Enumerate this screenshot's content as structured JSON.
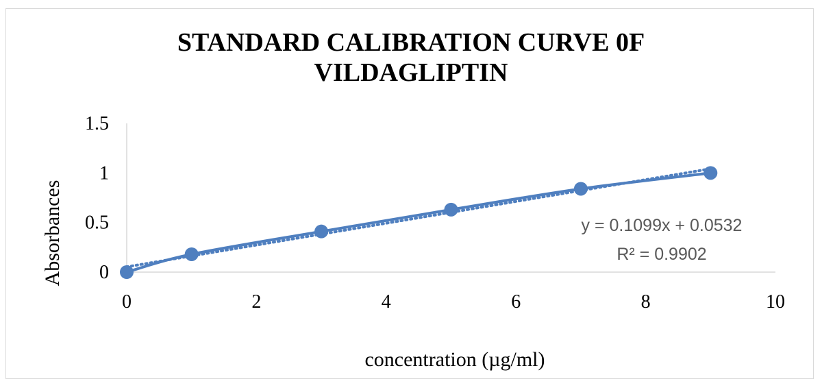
{
  "chart_data": {
    "type": "scatter",
    "title_lines": [
      "STANDARD CALIBRATION CURVE 0F",
      "VILDAGLIPTIN"
    ],
    "xlabel": "concentration (µg/ml)",
    "ylabel": "Absorbances",
    "xlim": [
      0,
      10
    ],
    "ylim": [
      0,
      1.5
    ],
    "x_ticks": [
      "0",
      "2",
      "4",
      "6",
      "8",
      "10"
    ],
    "y_ticks": [
      "0",
      "0.5",
      "1",
      "1.5"
    ],
    "grid": false,
    "legend": "none",
    "series": [
      {
        "x": [
          0,
          1,
          3,
          5,
          7,
          9
        ],
        "y": [
          0.0,
          0.18,
          0.41,
          0.63,
          0.84,
          1.0
        ],
        "color": "#4f7fbf",
        "style": "smooth line with markers"
      }
    ],
    "trendline": {
      "type": "linear",
      "slope": 0.1099,
      "intercept": 0.0532,
      "style": "dotted",
      "color": "#4f7fbf"
    },
    "annotations": [
      "y = 0.1099x + 0.0532",
      "R² = 0.9902"
    ]
  }
}
